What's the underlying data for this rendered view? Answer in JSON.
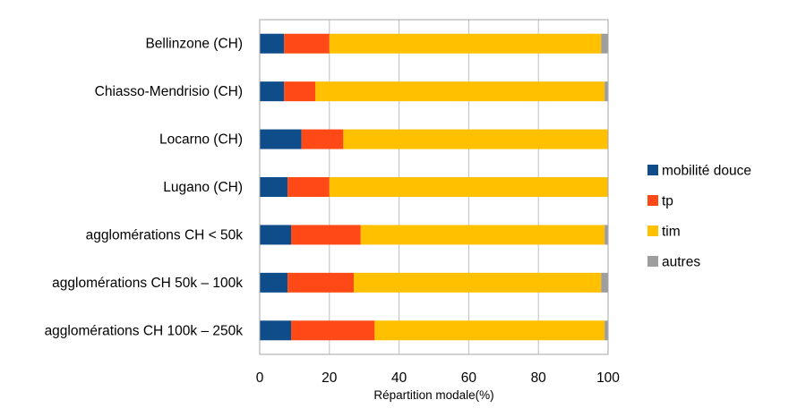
{
  "chart_data": {
    "type": "bar",
    "orientation": "horizontal",
    "stacked": true,
    "title": "",
    "xlabel": "Répartition modale(%)",
    "ylabel": "",
    "xlim": [
      0,
      100
    ],
    "xticks": [
      "0",
      "20",
      "40",
      "60",
      "80",
      "100"
    ],
    "grid": true,
    "legend_position": "right",
    "categories": [
      "Bellinzone (CH)",
      "Chiasso-Mendrisio (CH)",
      "Locarno (CH)",
      "Lugano (CH)",
      "agglomérations CH < 50k",
      "agglomérations CH 50k – 100k",
      "agglomérations CH 100k – 250k"
    ],
    "series": [
      {
        "name": "mobilité douce",
        "color": "#0E4C8A",
        "values": [
          7,
          7,
          12,
          8,
          9,
          8,
          9
        ]
      },
      {
        "name": "tp",
        "color": "#FF4A17",
        "values": [
          13,
          9,
          12,
          12,
          20,
          19,
          24
        ]
      },
      {
        "name": "tim",
        "color": "#FFC000",
        "values": [
          78,
          83,
          76,
          80,
          70,
          71,
          66
        ]
      },
      {
        "name": "autres",
        "color": "#9E9E9E",
        "values": [
          2,
          1,
          0,
          0,
          1,
          2,
          1
        ]
      }
    ]
  }
}
